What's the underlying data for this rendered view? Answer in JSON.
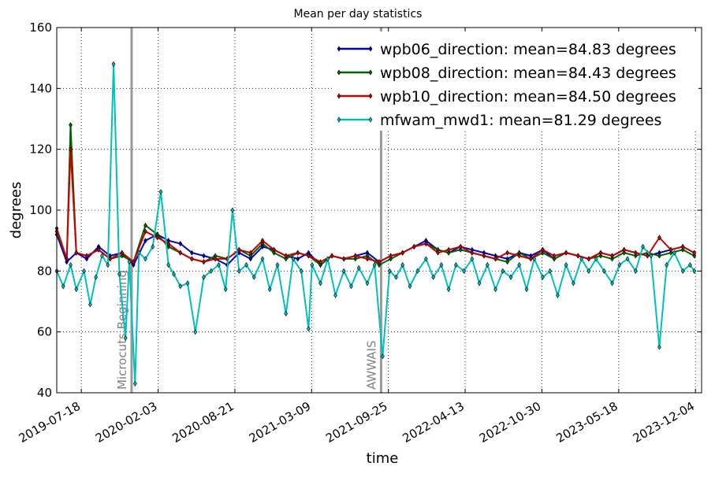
{
  "chart_data": {
    "type": "line",
    "title": "Mean per day statistics",
    "xlabel": "time",
    "ylabel": "degrees",
    "ylim": [
      40,
      160
    ],
    "yticks": [
      40,
      60,
      80,
      100,
      120,
      140,
      160
    ],
    "xlim": [
      "2019-05-15",
      "2023-12-20"
    ],
    "xticks": [
      "2019-07-18",
      "2020-02-03",
      "2020-08-21",
      "2021-03-09",
      "2021-09-25",
      "2022-04-13",
      "2022-10-30",
      "2023-05-18",
      "2023-12-04"
    ],
    "grid": true,
    "legend_position": "top-right",
    "annotations": [
      {
        "label": "Microcuts Beginning",
        "date": "2019-11-26"
      },
      {
        "label": "AWWAIS",
        "date": "2021-09-06"
      }
    ],
    "series": [
      {
        "name": "wpb06_direction: mean=84.83 degrees",
        "color": "#0000cc",
        "x": [
          "2019-05-15",
          "2019-06-10",
          "2019-07-05",
          "2019-08-01",
          "2019-09-01",
          "2019-10-01",
          "2019-11-01",
          "2019-12-01",
          "2020-01-01",
          "2020-02-01",
          "2020-03-01",
          "2020-04-01",
          "2020-05-01",
          "2020-06-01",
          "2020-07-01",
          "2020-08-01",
          "2020-09-01",
          "2020-10-01",
          "2020-11-01",
          "2020-12-01",
          "2021-01-01",
          "2021-02-01",
          "2021-03-01",
          "2021-04-01",
          "2021-05-01",
          "2021-06-01",
          "2021-07-01",
          "2021-08-01",
          "2021-09-01",
          "2021-10-01",
          "2021-11-01",
          "2021-12-01",
          "2022-01-01",
          "2022-02-01",
          "2022-03-01",
          "2022-04-01",
          "2022-05-01",
          "2022-06-01",
          "2022-07-01",
          "2022-08-01",
          "2022-09-01",
          "2022-10-01",
          "2022-11-01",
          "2022-12-01",
          "2023-01-01",
          "2023-02-01",
          "2023-03-01",
          "2023-04-01",
          "2023-05-01",
          "2023-06-01",
          "2023-07-01",
          "2023-08-01",
          "2023-09-01",
          "2023-10-01",
          "2023-11-01",
          "2023-12-01"
        ],
        "y": [
          92,
          83,
          86,
          84,
          88,
          85,
          86,
          82,
          90,
          92,
          90,
          89,
          86,
          85,
          84,
          82,
          86,
          84,
          88,
          87,
          85,
          84,
          86,
          82,
          85,
          84,
          85,
          86,
          83,
          85,
          86,
          88,
          90,
          87,
          86,
          88,
          87,
          86,
          85,
          84,
          86,
          85,
          87,
          84,
          86,
          85,
          84,
          86,
          85,
          87,
          86,
          85,
          86,
          87,
          88,
          86
        ]
      },
      {
        "name": "wpb08_direction: mean=84.43 degrees",
        "color": "#006600",
        "x": [
          "2019-05-15",
          "2019-06-10",
          "2019-06-20",
          "2019-07-05",
          "2019-08-01",
          "2019-09-01",
          "2019-10-01",
          "2019-11-01",
          "2019-12-01",
          "2020-01-01",
          "2020-02-01",
          "2020-03-01",
          "2020-04-01",
          "2020-05-01",
          "2020-06-01",
          "2020-07-01",
          "2020-08-01",
          "2020-09-01",
          "2020-10-01",
          "2020-11-01",
          "2020-12-01",
          "2021-01-01",
          "2021-02-01",
          "2021-03-01",
          "2021-04-01",
          "2021-05-01",
          "2021-06-01",
          "2021-07-01",
          "2021-08-01",
          "2021-09-01",
          "2021-10-01",
          "2021-11-01",
          "2021-12-01",
          "2022-01-01",
          "2022-02-01",
          "2022-03-01",
          "2022-04-01",
          "2022-05-01",
          "2022-06-01",
          "2022-07-01",
          "2022-08-01",
          "2022-09-01",
          "2022-10-01",
          "2022-11-01",
          "2022-12-01",
          "2023-01-01",
          "2023-02-01",
          "2023-03-01",
          "2023-04-01",
          "2023-05-01",
          "2023-06-01",
          "2023-07-01",
          "2023-08-01",
          "2023-09-01",
          "2023-10-01",
          "2023-11-01",
          "2023-12-01"
        ],
        "y": [
          93,
          84,
          128,
          86,
          85,
          87,
          84,
          85,
          83,
          95,
          92,
          88,
          86,
          84,
          83,
          85,
          84,
          87,
          85,
          89,
          86,
          84,
          86,
          85,
          82,
          85,
          84,
          84,
          85,
          82,
          84,
          86,
          88,
          89,
          87,
          86,
          87,
          86,
          85,
          84,
          83,
          86,
          84,
          86,
          84,
          86,
          85,
          84,
          85,
          84,
          86,
          85,
          86,
          85,
          86,
          87,
          85
        ]
      },
      {
        "name": "wpb10_direction: mean=84.50 degrees",
        "color": "#cc0000",
        "x": [
          "2019-05-15",
          "2019-06-10",
          "2019-06-20",
          "2019-07-05",
          "2019-08-01",
          "2019-09-01",
          "2019-10-01",
          "2019-11-01",
          "2019-12-01",
          "2020-01-01",
          "2020-02-01",
          "2020-03-01",
          "2020-04-01",
          "2020-05-01",
          "2020-06-01",
          "2020-07-01",
          "2020-08-01",
          "2020-09-01",
          "2020-10-01",
          "2020-11-01",
          "2020-12-01",
          "2021-01-01",
          "2021-02-01",
          "2021-03-01",
          "2021-04-01",
          "2021-05-01",
          "2021-06-01",
          "2021-07-01",
          "2021-08-01",
          "2021-09-01",
          "2021-10-01",
          "2021-11-01",
          "2021-12-01",
          "2022-01-01",
          "2022-02-01",
          "2022-03-01",
          "2022-04-01",
          "2022-05-01",
          "2022-06-01",
          "2022-07-01",
          "2022-08-01",
          "2022-09-01",
          "2022-10-01",
          "2022-11-01",
          "2022-12-01",
          "2023-01-01",
          "2023-02-01",
          "2023-03-01",
          "2023-04-01",
          "2023-05-01",
          "2023-06-01",
          "2023-07-01",
          "2023-08-01",
          "2023-09-01",
          "2023-10-01",
          "2023-11-01",
          "2023-12-01"
        ],
        "y": [
          94,
          84,
          120,
          86,
          85,
          87,
          84,
          86,
          83,
          93,
          91,
          89,
          86,
          84,
          83,
          84,
          84,
          87,
          86,
          90,
          87,
          85,
          86,
          85,
          83,
          85,
          84,
          85,
          84,
          83,
          85,
          86,
          88,
          89,
          86,
          87,
          88,
          86,
          85,
          84,
          86,
          85,
          84,
          87,
          85,
          86,
          85,
          84,
          86,
          85,
          87,
          86,
          85,
          91,
          87,
          88,
          86
        ]
      },
      {
        "name": "mfwam_mwd1: mean=81.29 degrees",
        "color": "#00bfbf",
        "x": [
          "2019-05-15",
          "2019-06-01",
          "2019-06-20",
          "2019-07-05",
          "2019-07-25",
          "2019-08-10",
          "2019-08-25",
          "2019-09-10",
          "2019-09-25",
          "2019-10-10",
          "2019-10-25",
          "2019-11-10",
          "2019-11-20",
          "2019-12-05",
          "2019-12-15",
          "2020-01-01",
          "2020-01-20",
          "2020-02-10",
          "2020-03-01",
          "2020-03-15",
          "2020-04-01",
          "2020-04-20",
          "2020-05-10",
          "2020-06-01",
          "2020-06-20",
          "2020-07-10",
          "2020-07-28",
          "2020-08-15",
          "2020-09-01",
          "2020-09-20",
          "2020-10-10",
          "2020-11-01",
          "2020-11-20",
          "2020-12-10",
          "2021-01-01",
          "2021-01-20",
          "2021-02-10",
          "2021-03-01",
          "2021-03-10",
          "2021-04-01",
          "2021-04-20",
          "2021-05-10",
          "2021-06-01",
          "2021-06-20",
          "2021-07-10",
          "2021-08-01",
          "2021-08-20",
          "2021-09-10",
          "2021-09-28",
          "2021-10-15",
          "2021-11-01",
          "2021-11-20",
          "2021-12-10",
          "2022-01-01",
          "2022-01-20",
          "2022-02-10",
          "2022-03-01",
          "2022-03-20",
          "2022-04-10",
          "2022-05-01",
          "2022-05-20",
          "2022-06-10",
          "2022-07-01",
          "2022-07-20",
          "2022-08-10",
          "2022-09-01",
          "2022-09-20",
          "2022-10-10",
          "2022-11-01",
          "2022-11-20",
          "2022-12-10",
          "2023-01-01",
          "2023-01-20",
          "2023-02-10",
          "2023-03-01",
          "2023-03-20",
          "2023-04-10",
          "2023-05-01",
          "2023-05-20",
          "2023-06-10",
          "2023-07-01",
          "2023-07-20",
          "2023-08-10",
          "2023-09-01",
          "2023-09-20",
          "2023-10-10",
          "2023-11-01",
          "2023-11-20",
          "2023-12-01"
        ],
        "y": [
          80,
          75,
          82,
          74,
          80,
          69,
          78,
          85,
          82,
          148,
          79,
          58,
          83,
          43,
          86,
          84,
          88,
          106,
          82,
          79,
          75,
          76,
          60,
          78,
          80,
          82,
          74,
          100,
          80,
          82,
          78,
          84,
          74,
          82,
          66,
          84,
          80,
          61,
          82,
          76,
          84,
          72,
          80,
          75,
          81,
          76,
          82,
          52,
          80,
          78,
          82,
          75,
          80,
          84,
          78,
          82,
          74,
          82,
          80,
          84,
          76,
          82,
          74,
          80,
          78,
          82,
          74,
          84,
          78,
          80,
          72,
          82,
          76,
          84,
          80,
          84,
          80,
          76,
          82,
          84,
          80,
          88,
          85,
          55,
          82,
          86,
          80,
          82,
          80
        ]
      }
    ]
  }
}
